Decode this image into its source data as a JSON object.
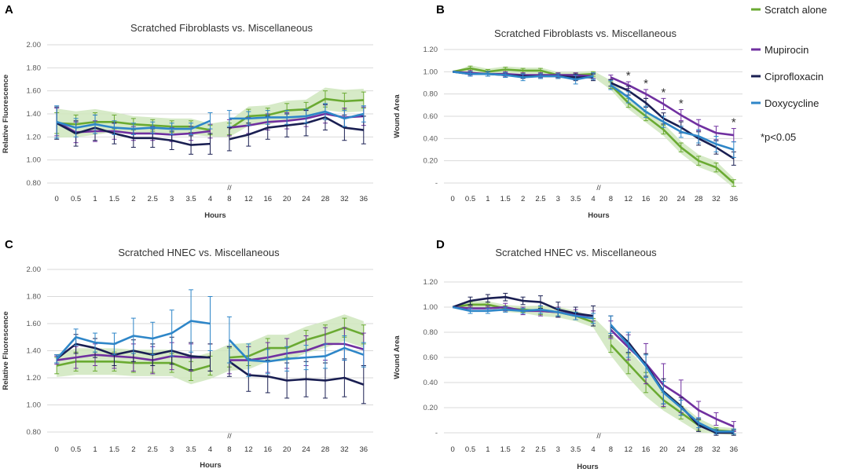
{
  "colors": {
    "Scratch alone": "#6aaa32",
    "Mupirocin": "#7030a0",
    "Ciprofloxacin": "#1a1f52",
    "Doxycycline": "#2e86c8",
    "band": "#cfe6bd"
  },
  "legend": {
    "items": [
      "Scratch alone",
      "Mupirocin",
      "Ciprofloxacin",
      "Doxycycline"
    ],
    "note": "*p<0.05"
  },
  "chart_data": [
    {
      "panel": "A",
      "type": "line",
      "title": "Scratched Fibroblasts vs. Miscellaneous",
      "xlabel": "Hours",
      "ylabel": "Relative Fluorescence",
      "break_marker": "//",
      "ylim": [
        0.8,
        2.0
      ],
      "yticks": [
        "2.00",
        "1.80",
        "1.60",
        "1.40",
        "1.20",
        "1.00",
        "0.80"
      ],
      "categories": [
        "0",
        "0.5",
        "1",
        "1.5",
        "2",
        "2.5",
        "3",
        "3.5",
        "4",
        "8",
        "12",
        "16",
        "20",
        "24",
        "28",
        "32",
        "36"
      ],
      "series": [
        {
          "name": "Scratch alone",
          "values": [
            1.32,
            1.31,
            1.33,
            1.33,
            1.31,
            1.3,
            1.29,
            1.29,
            1.26,
            1.27,
            1.38,
            1.39,
            1.43,
            1.44,
            1.53,
            1.51,
            1.52
          ],
          "err": [
            0.09,
            0.08,
            0.08,
            0.06,
            0.05,
            0.05,
            0.05,
            0.05,
            0.04,
            0.05,
            0.06,
            0.06,
            0.06,
            0.06,
            0.07,
            0.07,
            0.07
          ]
        },
        {
          "name": "Mupirocin",
          "values": [
            1.33,
            1.24,
            1.25,
            1.25,
            1.23,
            1.23,
            1.22,
            1.23,
            1.25,
            1.28,
            1.3,
            1.33,
            1.34,
            1.36,
            1.4,
            1.37,
            1.38
          ],
          "err": [
            0.12,
            0.09,
            0.09,
            0.07,
            0.06,
            0.06,
            0.06,
            0.06,
            0.06,
            0.07,
            0.07,
            0.07,
            0.07,
            0.07,
            0.08,
            0.08,
            0.08
          ]
        },
        {
          "name": "Ciprofloxacin",
          "values": [
            1.32,
            1.23,
            1.28,
            1.23,
            1.19,
            1.19,
            1.17,
            1.13,
            1.14,
            1.18,
            1.22,
            1.28,
            1.3,
            1.32,
            1.37,
            1.28,
            1.26
          ],
          "err": [
            0.14,
            0.11,
            0.11,
            0.09,
            0.08,
            0.08,
            0.08,
            0.08,
            0.09,
            0.1,
            0.1,
            0.1,
            0.1,
            0.11,
            0.11,
            0.11,
            0.12
          ]
        },
        {
          "name": "Doxycycline",
          "values": [
            1.33,
            1.28,
            1.31,
            1.28,
            1.27,
            1.28,
            1.27,
            1.27,
            1.34,
            1.36,
            1.36,
            1.37,
            1.37,
            1.38,
            1.42,
            1.36,
            1.4
          ],
          "err": [
            0.14,
            0.08,
            0.08,
            0.06,
            0.05,
            0.05,
            0.05,
            0.05,
            0.07,
            0.07,
            0.06,
            0.06,
            0.06,
            0.06,
            0.07,
            0.07,
            0.07
          ]
        }
      ]
    },
    {
      "panel": "B",
      "type": "line",
      "title": "Scratched Fibroblasts vs. Miscellaneous",
      "xlabel": "Hours",
      "ylabel": "Wound Area",
      "break_marker": "//",
      "ylim": [
        0,
        1.2
      ],
      "yticks": [
        "1.20",
        "1.00",
        "0.80",
        "0.60",
        "0.40",
        "0.20",
        "-"
      ],
      "categories": [
        "0",
        "0.5",
        "1",
        "1.5",
        "2",
        "2.5",
        "3",
        "3.5",
        "4",
        "8",
        "12",
        "16",
        "20",
        "24",
        "28",
        "32",
        "36"
      ],
      "significance": [
        "12",
        "16",
        "20",
        "24",
        "36"
      ],
      "series": [
        {
          "name": "Scratch alone",
          "values": [
            1.0,
            1.03,
            1.0,
            1.02,
            1.01,
            1.01,
            0.97,
            0.97,
            0.98,
            0.88,
            0.72,
            0.6,
            0.48,
            0.32,
            0.2,
            0.14,
            0.0
          ],
          "err": [
            0.0,
            0.02,
            0.02,
            0.02,
            0.02,
            0.02,
            0.02,
            0.02,
            0.02,
            0.03,
            0.04,
            0.04,
            0.04,
            0.04,
            0.04,
            0.04,
            0.03
          ]
        },
        {
          "name": "Mupirocin",
          "values": [
            1.0,
            0.99,
            0.98,
            0.98,
            0.97,
            0.97,
            0.97,
            0.97,
            0.96,
            0.95,
            0.88,
            0.8,
            0.71,
            0.61,
            0.52,
            0.45,
            0.43
          ],
          "err": [
            0.0,
            0.02,
            0.02,
            0.02,
            0.02,
            0.02,
            0.02,
            0.02,
            0.02,
            0.02,
            0.03,
            0.04,
            0.05,
            0.05,
            0.05,
            0.06,
            0.06
          ]
        },
        {
          "name": "Ciprofloxacin",
          "values": [
            1.0,
            0.98,
            0.98,
            0.97,
            0.96,
            0.96,
            0.96,
            0.95,
            0.95,
            0.9,
            0.83,
            0.72,
            0.58,
            0.5,
            0.4,
            0.32,
            0.22
          ],
          "err": [
            0.0,
            0.02,
            0.02,
            0.02,
            0.02,
            0.02,
            0.02,
            0.03,
            0.03,
            0.03,
            0.04,
            0.04,
            0.05,
            0.05,
            0.06,
            0.06,
            0.06
          ]
        },
        {
          "name": "Doxycycline",
          "values": [
            1.0,
            0.98,
            0.98,
            0.97,
            0.95,
            0.96,
            0.96,
            0.93,
            0.96,
            0.88,
            0.77,
            0.64,
            0.55,
            0.46,
            0.42,
            0.35,
            0.3
          ],
          "err": [
            0.0,
            0.02,
            0.02,
            0.02,
            0.03,
            0.02,
            0.02,
            0.04,
            0.03,
            0.04,
            0.05,
            0.05,
            0.05,
            0.05,
            0.06,
            0.07,
            0.07
          ]
        }
      ]
    },
    {
      "panel": "C",
      "type": "line",
      "title": "Scratched HNEC vs. Miscellaneous",
      "xlabel": "Hours",
      "ylabel": "Relative Fluorescence",
      "break_marker": "//",
      "ylim": [
        0.8,
        2.0
      ],
      "yticks": [
        "2.00",
        "1.80",
        "1.60",
        "1.40",
        "1.20",
        "1.00",
        "0.80"
      ],
      "categories": [
        "0",
        "0.5",
        "1",
        "1.5",
        "2",
        "2.5",
        "3",
        "3.5",
        "4",
        "8",
        "12",
        "16",
        "20",
        "24",
        "28",
        "32",
        "36"
      ],
      "series": [
        {
          "name": "Scratch alone",
          "values": [
            1.29,
            1.32,
            1.32,
            1.32,
            1.31,
            1.31,
            1.31,
            1.25,
            1.29,
            1.35,
            1.36,
            1.42,
            1.42,
            1.48,
            1.52,
            1.57,
            1.52
          ],
          "err": [
            0.06,
            0.07,
            0.07,
            0.07,
            0.07,
            0.07,
            0.07,
            0.07,
            0.07,
            0.07,
            0.07,
            0.07,
            0.07,
            0.07,
            0.07,
            0.07,
            0.07
          ]
        },
        {
          "name": "Mupirocin",
          "values": [
            1.33,
            1.35,
            1.37,
            1.36,
            1.35,
            1.33,
            1.36,
            1.35,
            1.35,
            1.33,
            1.33,
            1.35,
            1.38,
            1.4,
            1.45,
            1.45,
            1.41
          ],
          "err": [
            0.03,
            0.08,
            0.08,
            0.09,
            0.1,
            0.1,
            0.1,
            0.1,
            0.1,
            0.1,
            0.1,
            0.11,
            0.11,
            0.11,
            0.12,
            0.12,
            0.12
          ]
        },
        {
          "name": "Ciprofloxacin",
          "values": [
            1.34,
            1.45,
            1.42,
            1.37,
            1.4,
            1.37,
            1.4,
            1.36,
            1.35,
            1.32,
            1.22,
            1.21,
            1.18,
            1.19,
            1.18,
            1.2,
            1.15
          ],
          "err": [
            0.03,
            0.07,
            0.07,
            0.08,
            0.08,
            0.08,
            0.1,
            0.1,
            0.1,
            0.11,
            0.12,
            0.12,
            0.13,
            0.13,
            0.13,
            0.14,
            0.14
          ]
        },
        {
          "name": "Doxycycline",
          "values": [
            1.34,
            1.5,
            1.46,
            1.45,
            1.51,
            1.49,
            1.53,
            1.62,
            1.6,
            1.48,
            1.33,
            1.32,
            1.34,
            1.35,
            1.36,
            1.42,
            1.37
          ],
          "err": [
            0.03,
            0.06,
            0.07,
            0.08,
            0.13,
            0.12,
            0.17,
            0.23,
            0.2,
            0.17,
            0.12,
            0.09,
            0.09,
            0.09,
            0.09,
            0.09,
            0.09
          ]
        }
      ]
    },
    {
      "panel": "D",
      "type": "line",
      "title": "Scratched HNEC vs. Miscellaneous",
      "xlabel": "Hours",
      "ylabel": "Wound Area",
      "break_marker": "//",
      "ylim": [
        0,
        1.2
      ],
      "yticks": [
        "1.20",
        "1.00",
        "0.80",
        "0.60",
        "0.40",
        "0.20",
        "-"
      ],
      "categories": [
        "0",
        "0.5",
        "1",
        "1.5",
        "2",
        "2.5",
        "3",
        "3.5",
        "4",
        "8",
        "12",
        "16",
        "20",
        "24",
        "28",
        "32",
        "36"
      ],
      "series": [
        {
          "name": "Scratch alone",
          "values": [
            1.0,
            1.02,
            1.02,
            0.99,
            0.98,
            0.97,
            0.96,
            0.93,
            0.88,
            0.7,
            0.55,
            0.4,
            0.26,
            0.16,
            0.06,
            0.02,
            0.01
          ],
          "err": [
            0.0,
            0.02,
            0.02,
            0.02,
            0.02,
            0.03,
            0.03,
            0.03,
            0.03,
            0.06,
            0.08,
            0.08,
            0.06,
            0.05,
            0.04,
            0.02,
            0.02
          ]
        },
        {
          "name": "Mupirocin",
          "values": [
            1.0,
            0.99,
            0.99,
            1.0,
            0.97,
            0.97,
            0.96,
            0.94,
            0.93,
            0.82,
            0.68,
            0.55,
            0.38,
            0.29,
            0.18,
            0.11,
            0.05
          ],
          "err": [
            0.0,
            0.02,
            0.02,
            0.03,
            0.03,
            0.04,
            0.04,
            0.04,
            0.04,
            0.07,
            0.1,
            0.16,
            0.17,
            0.13,
            0.07,
            0.05,
            0.04
          ]
        },
        {
          "name": "Ciprofloxacin",
          "values": [
            1.0,
            1.05,
            1.07,
            1.08,
            1.05,
            1.04,
            0.98,
            0.95,
            0.93,
            0.85,
            0.72,
            0.54,
            0.33,
            0.21,
            0.06,
            0.0,
            0.0
          ],
          "err": [
            0.0,
            0.03,
            0.03,
            0.03,
            0.03,
            0.05,
            0.06,
            0.05,
            0.08,
            0.08,
            0.08,
            0.09,
            0.1,
            0.07,
            0.05,
            0.02,
            0.02
          ]
        },
        {
          "name": "Doxycycline",
          "values": [
            1.0,
            0.97,
            0.97,
            0.98,
            0.97,
            0.98,
            0.96,
            0.93,
            0.91,
            0.86,
            0.7,
            0.53,
            0.32,
            0.2,
            0.08,
            0.01,
            0.01
          ],
          "err": [
            0.0,
            0.02,
            0.02,
            0.02,
            0.02,
            0.03,
            0.03,
            0.03,
            0.04,
            0.07,
            0.1,
            0.09,
            0.09,
            0.06,
            0.04,
            0.02,
            0.02
          ]
        }
      ]
    }
  ]
}
